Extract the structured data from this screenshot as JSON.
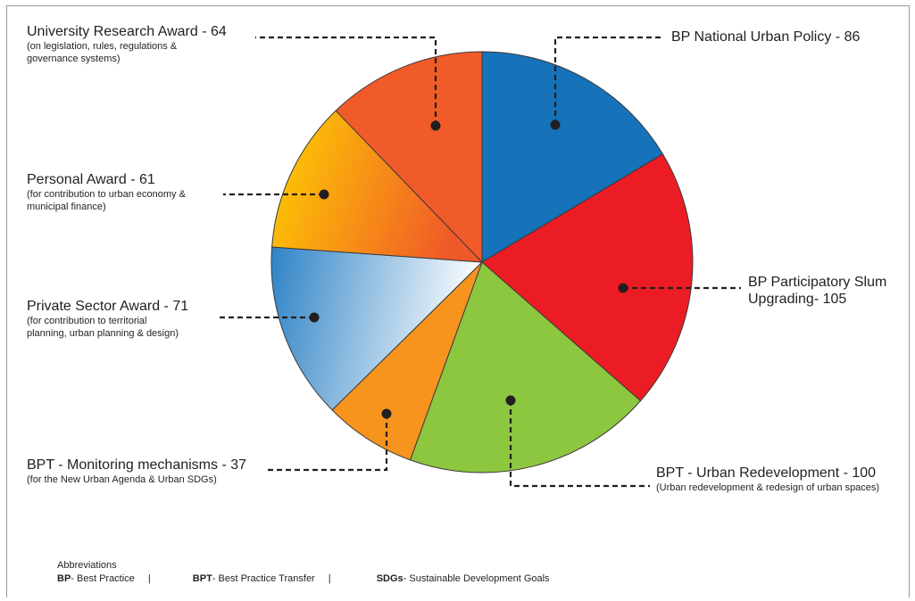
{
  "chart_data": {
    "type": "pie",
    "slices": [
      {
        "label": "BP National Urban Policy",
        "value": 86,
        "display": "BP National Urban Policy - 86",
        "sub": "",
        "color": "#1672b9",
        "fill": "solid"
      },
      {
        "label": "BP Participatory Slum Upgrading",
        "value": 105,
        "display_lines": [
          "BP Participatory Slum",
          "Upgrading- 105"
        ],
        "sub": "",
        "color": "#ec1c24",
        "fill": "solid"
      },
      {
        "label": "BPT - Urban Redevelopment",
        "value": 100,
        "display": "BPT - Urban Redevelopment - 100",
        "sub": "(Urban redevelopment & redesign of urban spaces)",
        "color": "#8dc63f",
        "fill": "solid"
      },
      {
        "label": "BPT - Monitoring mechanisms",
        "value": 37,
        "display": "BPT - Monitoring mechanisms - 37",
        "sub": "(for the New Urban Agenda & Urban SDGs)",
        "color": "#f7941d",
        "fill": "solid"
      },
      {
        "label": "Private Sector Award",
        "value": 71,
        "display": "Private Sector Award - 71",
        "sub_lines": [
          "(for contribution to territorial",
          "planning, urban planning & design)"
        ],
        "color": "#2e83c6",
        "color2": "#ffffff",
        "fill": "gradient"
      },
      {
        "label": "Personal Award",
        "value": 61,
        "display": "Personal Award - 61",
        "sub_lines": [
          "(for contribution to urban economy &",
          "municipal finance)"
        ],
        "color": "#ffd200",
        "color2": "#f05a28",
        "fill": "gradient"
      },
      {
        "label": "University Research Award",
        "value": 64,
        "display": "University Research Award - 64",
        "sub_lines": [
          "(on legislation, rules, regulations &",
          "governance systems)"
        ],
        "color": "#f15a29",
        "fill": "solid"
      }
    ],
    "legend": "none",
    "title": ""
  },
  "abbreviations": {
    "heading": "Abbreviations",
    "items": [
      {
        "abbr": "BP",
        "text": " - Best Practice"
      },
      {
        "abbr": "BPT",
        "text": " - Best Practice Transfer"
      },
      {
        "abbr": "SDGs",
        "text": " - Sustainable Development Goals"
      }
    ],
    "separator": "|"
  }
}
